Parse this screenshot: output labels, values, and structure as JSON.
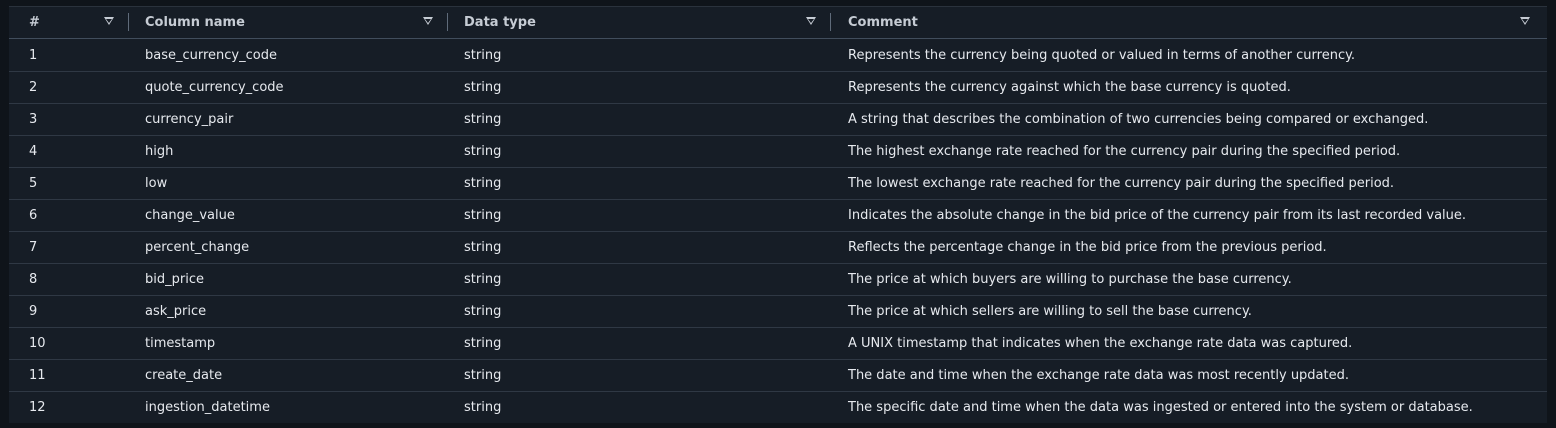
{
  "columns": {
    "num": "#",
    "name": "Column name",
    "type": "Data type",
    "comment": "Comment"
  },
  "icons": {
    "sort": "sort-caret-down-icon"
  },
  "rows": [
    {
      "num": "1",
      "name": "base_currency_code",
      "type": "string",
      "comment": "Represents the currency being quoted or valued in terms of another currency."
    },
    {
      "num": "2",
      "name": "quote_currency_code",
      "type": "string",
      "comment": "Represents the currency against which the base currency is quoted."
    },
    {
      "num": "3",
      "name": "currency_pair",
      "type": "string",
      "comment": "A string that describes the combination of two currencies being compared or exchanged."
    },
    {
      "num": "4",
      "name": "high",
      "type": "string",
      "comment": "The highest exchange rate reached for the currency pair during the specified period."
    },
    {
      "num": "5",
      "name": "low",
      "type": "string",
      "comment": "The lowest exchange rate reached for the currency pair during the specified period."
    },
    {
      "num": "6",
      "name": "change_value",
      "type": "string",
      "comment": "Indicates the absolute change in the bid price of the currency pair from its last recorded value."
    },
    {
      "num": "7",
      "name": "percent_change",
      "type": "string",
      "comment": "Reflects the percentage change in the bid price from the previous period."
    },
    {
      "num": "8",
      "name": "bid_price",
      "type": "string",
      "comment": "The price at which buyers are willing to purchase the base currency."
    },
    {
      "num": "9",
      "name": "ask_price",
      "type": "string",
      "comment": "The price at which sellers are willing to sell the base currency."
    },
    {
      "num": "10",
      "name": "timestamp",
      "type": "string",
      "comment": "A UNIX timestamp that indicates when the exchange rate data was captured."
    },
    {
      "num": "11",
      "name": "create_date",
      "type": "string",
      "comment": "The date and time when the exchange rate data was most recently updated."
    },
    {
      "num": "12",
      "name": "ingestion_datetime",
      "type": "string",
      "comment": "The specific date and time when the data was ingested or entered into the system or database."
    }
  ]
}
